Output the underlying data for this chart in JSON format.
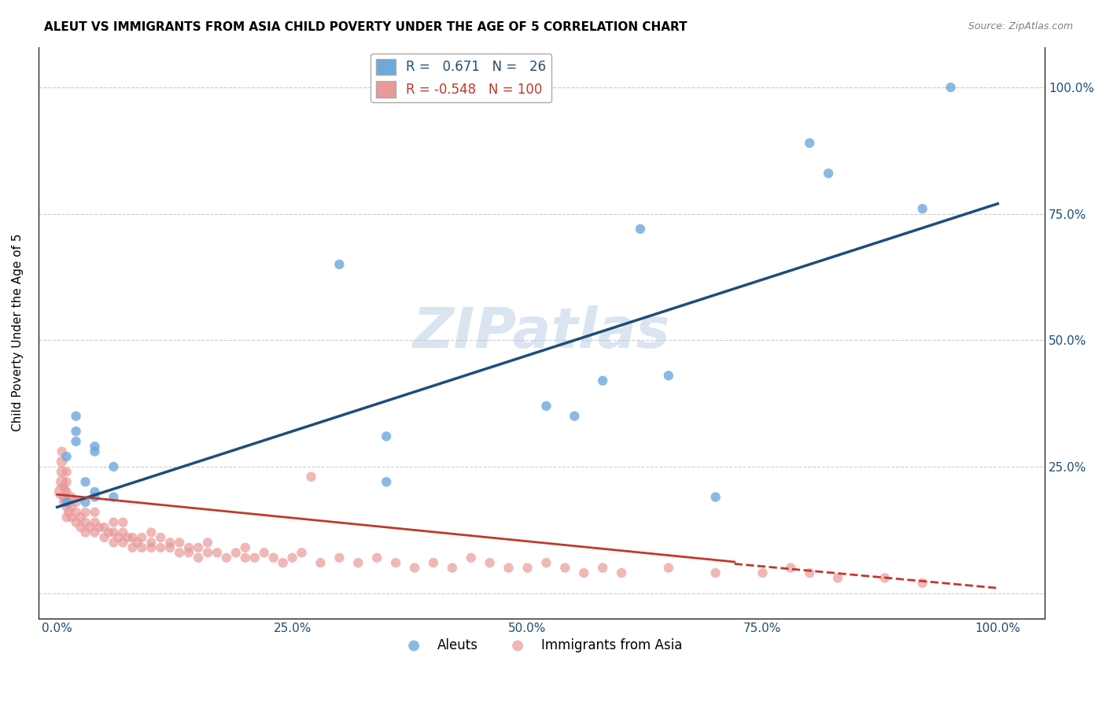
{
  "title": "ALEUT VS IMMIGRANTS FROM ASIA CHILD POVERTY UNDER THE AGE OF 5 CORRELATION CHART",
  "source": "Source: ZipAtlas.com",
  "ylabel": "Child Poverty Under the Age of 5",
  "x_ticks": [
    0.0,
    0.25,
    0.5,
    0.75,
    1.0
  ],
  "x_tick_labels": [
    "0.0%",
    "25.0%",
    "50.0%",
    "75.0%",
    "100.0%"
  ],
  "y_ticks": [
    0.0,
    0.25,
    0.5,
    0.75,
    1.0
  ],
  "y_tick_labels_right": [
    "",
    "25.0%",
    "50.0%",
    "75.0%",
    "100.0%"
  ],
  "aleut_color": "#6fa8dc",
  "immigrant_color": "#ea9999",
  "aleut_line_color": "#1f4e79",
  "immigrant_line_color": "#c0392b",
  "legend_aleut_label": "Aleuts",
  "legend_immigrant_label": "Immigrants from Asia",
  "R_aleut": 0.671,
  "N_aleut": 26,
  "R_immigrant": -0.548,
  "N_immigrant": 100,
  "watermark": "ZIPatlas",
  "background_color": "#ffffff",
  "aleut_scatter": {
    "x": [
      0.01,
      0.01,
      0.02,
      0.02,
      0.02,
      0.03,
      0.03,
      0.04,
      0.04,
      0.04,
      0.04,
      0.06,
      0.06,
      0.3,
      0.35,
      0.35,
      0.52,
      0.55,
      0.58,
      0.62,
      0.65,
      0.7,
      0.8,
      0.82,
      0.92,
      0.95
    ],
    "y": [
      0.18,
      0.27,
      0.3,
      0.32,
      0.35,
      0.18,
      0.22,
      0.19,
      0.2,
      0.28,
      0.29,
      0.19,
      0.25,
      0.65,
      0.22,
      0.31,
      0.37,
      0.35,
      0.42,
      0.72,
      0.43,
      0.19,
      0.89,
      0.83,
      0.76,
      1.0
    ],
    "sizes": [
      80,
      80,
      80,
      80,
      80,
      80,
      80,
      80,
      80,
      80,
      80,
      80,
      80,
      80,
      80,
      80,
      80,
      80,
      80,
      80,
      80,
      80,
      80,
      80,
      80,
      80
    ]
  },
  "immigrant_scatter": {
    "x": [
      0.005,
      0.005,
      0.005,
      0.005,
      0.005,
      0.007,
      0.007,
      0.007,
      0.01,
      0.01,
      0.01,
      0.01,
      0.01,
      0.01,
      0.012,
      0.012,
      0.015,
      0.015,
      0.015,
      0.02,
      0.02,
      0.02,
      0.025,
      0.025,
      0.03,
      0.03,
      0.03,
      0.035,
      0.04,
      0.04,
      0.04,
      0.045,
      0.05,
      0.05,
      0.055,
      0.06,
      0.06,
      0.06,
      0.065,
      0.07,
      0.07,
      0.07,
      0.075,
      0.08,
      0.08,
      0.085,
      0.09,
      0.09,
      0.1,
      0.1,
      0.1,
      0.11,
      0.11,
      0.12,
      0.12,
      0.13,
      0.13,
      0.14,
      0.14,
      0.15,
      0.15,
      0.16,
      0.16,
      0.17,
      0.18,
      0.19,
      0.2,
      0.2,
      0.21,
      0.22,
      0.23,
      0.24,
      0.25,
      0.26,
      0.27,
      0.28,
      0.3,
      0.32,
      0.34,
      0.36,
      0.38,
      0.4,
      0.42,
      0.44,
      0.46,
      0.48,
      0.5,
      0.52,
      0.54,
      0.56,
      0.58,
      0.6,
      0.65,
      0.7,
      0.75,
      0.78,
      0.8,
      0.83,
      0.88,
      0.92
    ],
    "y": [
      0.2,
      0.22,
      0.24,
      0.26,
      0.28,
      0.18,
      0.19,
      0.21,
      0.15,
      0.17,
      0.18,
      0.2,
      0.22,
      0.24,
      0.16,
      0.18,
      0.15,
      0.17,
      0.19,
      0.14,
      0.16,
      0.18,
      0.13,
      0.15,
      0.12,
      0.14,
      0.16,
      0.13,
      0.12,
      0.14,
      0.16,
      0.13,
      0.11,
      0.13,
      0.12,
      0.1,
      0.12,
      0.14,
      0.11,
      0.1,
      0.12,
      0.14,
      0.11,
      0.09,
      0.11,
      0.1,
      0.09,
      0.11,
      0.09,
      0.1,
      0.12,
      0.09,
      0.11,
      0.09,
      0.1,
      0.08,
      0.1,
      0.08,
      0.09,
      0.07,
      0.09,
      0.08,
      0.1,
      0.08,
      0.07,
      0.08,
      0.07,
      0.09,
      0.07,
      0.08,
      0.07,
      0.06,
      0.07,
      0.08,
      0.23,
      0.06,
      0.07,
      0.06,
      0.07,
      0.06,
      0.05,
      0.06,
      0.05,
      0.07,
      0.06,
      0.05,
      0.05,
      0.06,
      0.05,
      0.04,
      0.05,
      0.04,
      0.05,
      0.04,
      0.04,
      0.05,
      0.04,
      0.03,
      0.03,
      0.02
    ],
    "sizes": [
      200,
      120,
      100,
      100,
      80,
      80,
      80,
      80,
      80,
      80,
      80,
      80,
      80,
      80,
      80,
      80,
      80,
      80,
      80,
      80,
      80,
      80,
      80,
      80,
      80,
      80,
      80,
      80,
      80,
      80,
      80,
      80,
      80,
      80,
      80,
      80,
      80,
      80,
      80,
      80,
      80,
      80,
      80,
      80,
      80,
      80,
      80,
      80,
      80,
      80,
      80,
      80,
      80,
      80,
      80,
      80,
      80,
      80,
      80,
      80,
      80,
      80,
      80,
      80,
      80,
      80,
      80,
      80,
      80,
      80,
      80,
      80,
      80,
      80,
      80,
      80,
      80,
      80,
      80,
      80,
      80,
      80,
      80,
      80,
      80,
      80,
      80,
      80,
      80,
      80,
      80,
      80,
      80,
      80,
      80,
      80,
      80,
      80,
      80,
      80
    ]
  },
  "aleut_trendline": {
    "x_start": 0.0,
    "x_end": 1.0,
    "y_start": 0.17,
    "y_end": 0.77
  },
  "immigrant_trendline_solid_end": 0.72,
  "immigrant_trendline": {
    "x_start": 0.0,
    "x_end": 1.0,
    "y_start": 0.195,
    "y_end": 0.01
  },
  "immigrant_trendline_dashed": {
    "x_start": 0.72,
    "x_end": 1.0,
    "y_start": 0.058,
    "y_end": 0.01
  }
}
